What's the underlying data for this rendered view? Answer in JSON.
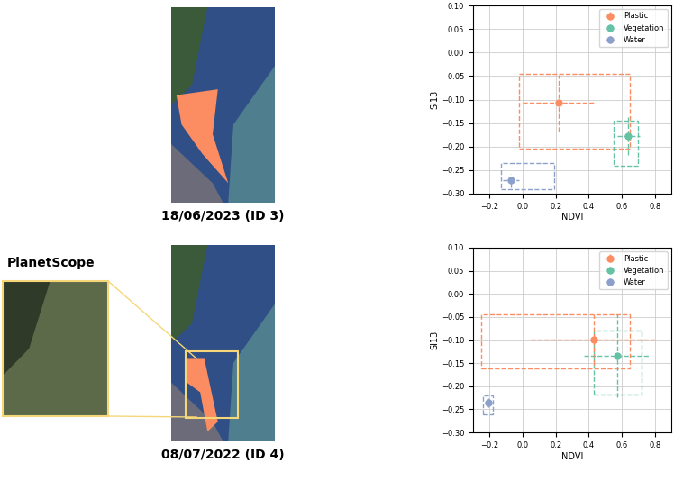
{
  "chart_data": [
    {
      "type": "scatter",
      "x_label": "NDVI",
      "y_label": "SI13",
      "xlim": [
        -0.3,
        0.9
      ],
      "xticks": [
        {
          "value": -0.2,
          "label": "−0.2"
        },
        {
          "value": 0.0,
          "label": "0.0"
        },
        {
          "value": 0.2,
          "label": "0.2"
        },
        {
          "value": 0.4,
          "label": "0.4"
        },
        {
          "value": 0.6,
          "label": "0.6"
        },
        {
          "value": 0.8,
          "label": "0.8"
        }
      ],
      "ylim": [
        -0.3,
        0.1
      ],
      "yticks": [
        {
          "value": -0.3,
          "label": "−0.30"
        },
        {
          "value": -0.25,
          "label": "−0.25"
        },
        {
          "value": -0.2,
          "label": "−0.20"
        },
        {
          "value": -0.15,
          "label": "−0.15"
        },
        {
          "value": -0.1,
          "label": "−0.10"
        },
        {
          "value": -0.05,
          "label": "−0.05"
        },
        {
          "value": 0.0,
          "label": "0.00"
        },
        {
          "value": 0.05,
          "label": "0.05"
        },
        {
          "value": 0.1,
          "label": "0.10"
        }
      ],
      "grid": true,
      "legend": "upper right",
      "marker": "o",
      "line_style": "dashed",
      "series": [
        {
          "name": "Plastic",
          "color": "#fc8d62",
          "x": [
            0.22
          ],
          "y": [
            -0.107
          ],
          "xerr": [
            0.22
          ],
          "yerr": [
            0.06
          ],
          "box": {
            "x": [
              -0.02,
              0.65
            ],
            "y": [
              -0.205,
              -0.045
            ]
          }
        },
        {
          "name": "Vegetation",
          "color": "#66c2a5",
          "x": [
            0.64
          ],
          "y": [
            -0.177
          ],
          "xerr": [
            0.07
          ],
          "yerr": [
            0.04
          ],
          "box": {
            "x": [
              0.55,
              0.7
            ],
            "y": [
              -0.24,
              -0.145
            ]
          }
        },
        {
          "name": "Water",
          "color": "#8da0cb",
          "x": [
            -0.07
          ],
          "y": [
            -0.272
          ],
          "xerr": [
            0.05
          ],
          "yerr": [
            0.015
          ],
          "box": {
            "x": [
              -0.13,
              0.19
            ],
            "y": [
              -0.29,
              -0.235
            ]
          }
        }
      ]
    },
    {
      "type": "scatter",
      "x_label": "NDVI",
      "y_label": "SI13",
      "xlim": [
        -0.3,
        0.9
      ],
      "xticks": [
        {
          "value": -0.2,
          "label": "−0.2"
        },
        {
          "value": 0.0,
          "label": "0.0"
        },
        {
          "value": 0.2,
          "label": "0.2"
        },
        {
          "value": 0.4,
          "label": "0.4"
        },
        {
          "value": 0.6,
          "label": "0.6"
        },
        {
          "value": 0.8,
          "label": "0.8"
        }
      ],
      "ylim": [
        -0.3,
        0.1
      ],
      "yticks": [
        {
          "value": -0.3,
          "label": "−0.30"
        },
        {
          "value": -0.25,
          "label": "−0.25"
        },
        {
          "value": -0.2,
          "label": "−0.20"
        },
        {
          "value": -0.15,
          "label": "−0.15"
        },
        {
          "value": -0.1,
          "label": "−0.10"
        },
        {
          "value": -0.05,
          "label": "−0.05"
        },
        {
          "value": 0.0,
          "label": "0.00"
        },
        {
          "value": 0.05,
          "label": "0.05"
        },
        {
          "value": 0.1,
          "label": "0.10"
        }
      ],
      "grid": true,
      "legend": "upper right",
      "marker": "o",
      "line_style": "dashed",
      "series": [
        {
          "name": "Plastic",
          "color": "#fc8d62",
          "x": [
            0.43
          ],
          "y": [
            -0.099
          ],
          "xerr": [
            0.38
          ],
          "yerr": [
            0.055
          ],
          "box": {
            "x": [
              -0.25,
              0.65
            ],
            "y": [
              -0.162,
              -0.045
            ]
          }
        },
        {
          "name": "Vegetation",
          "color": "#66c2a5",
          "x": [
            0.57
          ],
          "y": [
            -0.134
          ],
          "xerr": [
            0.2
          ],
          "yerr": [
            0.09
          ],
          "box": {
            "x": [
              0.43,
              0.72
            ],
            "y": [
              -0.218,
              -0.08
            ]
          }
        },
        {
          "name": "Water",
          "color": "#8da0cb",
          "x": [
            -0.21
          ],
          "y": [
            -0.235
          ],
          "xerr": [
            0.02
          ],
          "yerr": [
            0.01
          ],
          "box": {
            "x": [
              -0.24,
              -0.18
            ],
            "y": [
              -0.26,
              -0.22
            ]
          }
        }
      ]
    }
  ],
  "images": [
    {
      "caption": "18/06/2023 (ID 3)"
    },
    {
      "caption": "08/07/2022 (ID 4)",
      "inset": "PlanetScope"
    }
  ]
}
